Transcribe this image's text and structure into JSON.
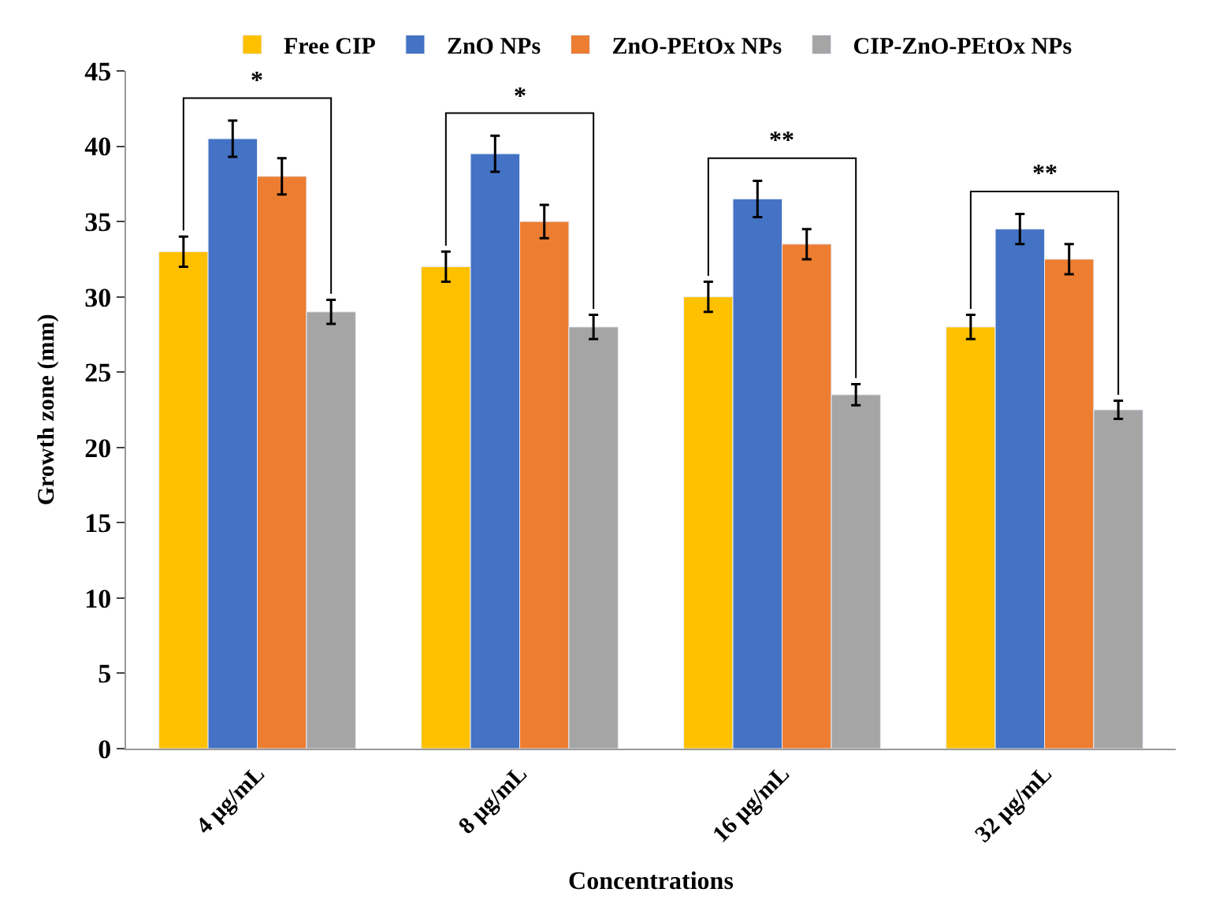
{
  "chart_data": {
    "type": "bar",
    "xlabel": "Concentrations",
    "ylabel": "Growth zone (mm)",
    "categories": [
      "4 μg/mL",
      "8 μg/mL",
      "16 μg/mL",
      "32 μg/mL"
    ],
    "series": [
      {
        "name": "Free CIP",
        "color": "#ffc000",
        "values": [
          33,
          32,
          30,
          28
        ],
        "errors": [
          1,
          1,
          1,
          0.8
        ]
      },
      {
        "name": "ZnO NPs",
        "color": "#4472c4",
        "values": [
          40.5,
          39.5,
          36.5,
          34.5
        ],
        "errors": [
          1.2,
          1.2,
          1.2,
          1
        ]
      },
      {
        "name": "ZnO-PEtOx NPs",
        "color": "#ed7d31",
        "values": [
          38,
          35,
          33.5,
          32.5
        ],
        "errors": [
          1.2,
          1.1,
          1,
          1
        ]
      },
      {
        "name": "CIP-ZnO-PEtOx NPs",
        "color": "#a5a5a5",
        "values": [
          29,
          28,
          23.5,
          22.5
        ],
        "errors": [
          0.8,
          0.8,
          0.7,
          0.6
        ]
      }
    ],
    "annotations": [
      "*",
      "*",
      "**",
      "**"
    ],
    "ylim": [
      0,
      45
    ],
    "yticks": [
      0,
      5,
      10,
      15,
      20,
      25,
      30,
      35,
      40,
      45
    ],
    "legend": "top"
  }
}
